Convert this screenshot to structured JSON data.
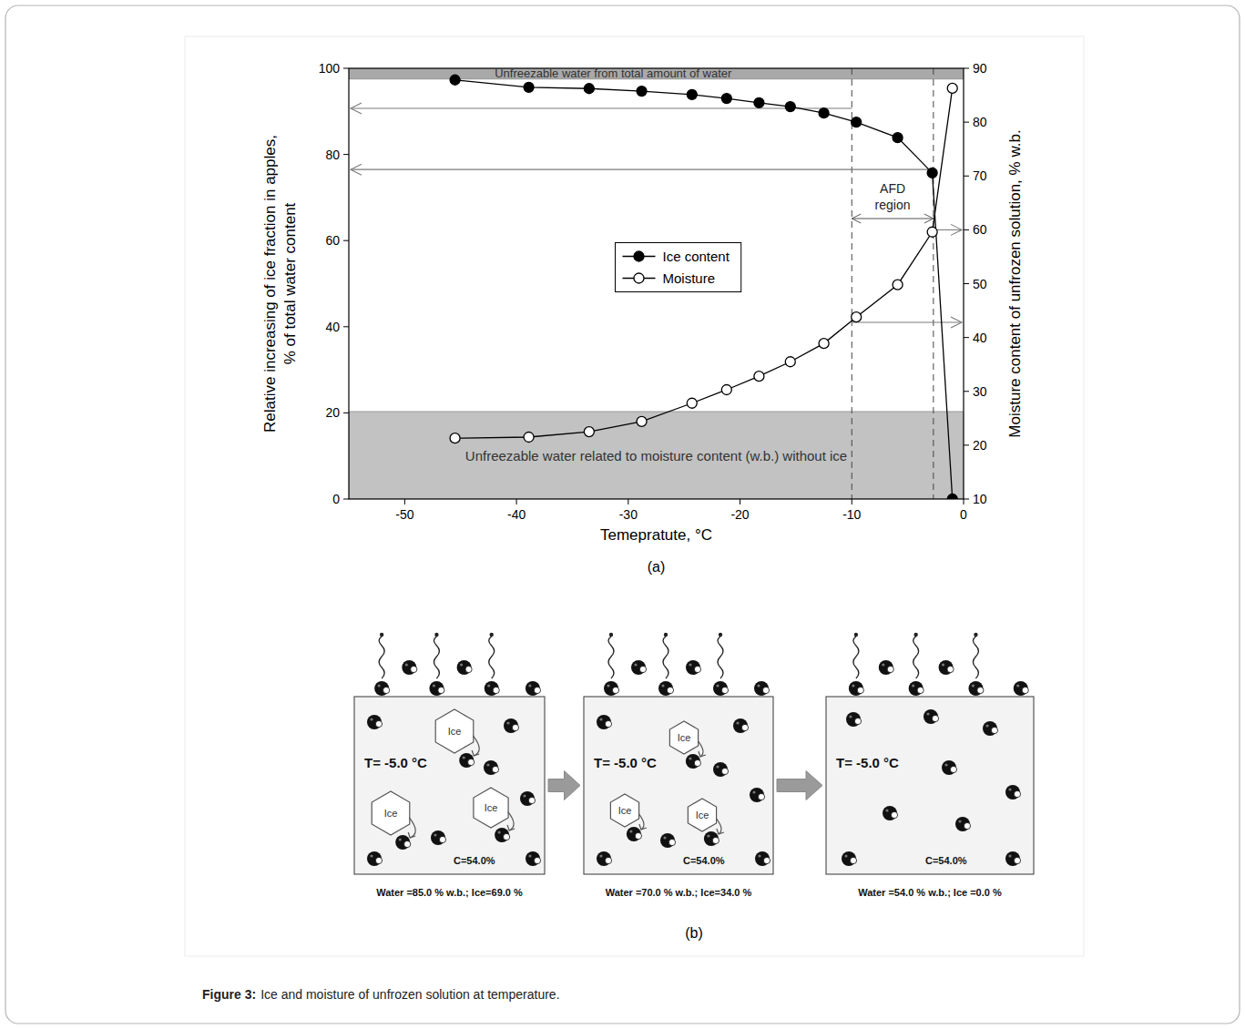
{
  "chart_data": {
    "type": "line",
    "x_label": "Temepratute, °C",
    "y_label": "Relative increasing of ice fraction in apples, % of total water content",
    "y2_label": "Moisture content of unfrozen solution, % w.b.",
    "x": [
      -45.5,
      -38.9,
      -33.5,
      -28.8,
      -24.3,
      -21.2,
      -18.3,
      -15.5,
      -12.5,
      -9.6,
      -5.9,
      -2.8,
      -1.0
    ],
    "series": [
      {
        "name": "Ice content",
        "color": "#000000",
        "marker": "filled-circle",
        "line_style": "solid",
        "values": [
          97.3,
          95.6,
          95.3,
          94.7,
          93.9,
          93.0,
          92.0,
          91.1,
          89.6,
          87.5,
          83.9,
          75.7,
          0
        ]
      },
      {
        "name": "Moisture",
        "color": "#000000",
        "marker": "open-circle",
        "line_style": "solid",
        "axis": "y2",
        "values": [
          21.3,
          21.5,
          22.5,
          24.4,
          27.8,
          30.3,
          32.8,
          35.5,
          38.9,
          43.8,
          49.8,
          59.6,
          86.3
        ]
      }
    ],
    "xlim": [
      -55,
      0
    ],
    "xticks": [
      -50,
      -40,
      -30,
      -20,
      -10,
      0
    ],
    "ylim": [
      0,
      100
    ],
    "yticks": [
      0,
      20,
      40,
      60,
      80,
      100
    ],
    "y2lim": [
      10,
      90
    ],
    "y2ticks": [
      10,
      20,
      30,
      40,
      50,
      60,
      70,
      80,
      90
    ],
    "grid": false,
    "legend": "center",
    "bands": [
      {
        "label": "Unfreezable water from total amount of water",
        "range": [
          97.5,
          100
        ],
        "color": "#a9a9a9"
      },
      {
        "label": "Unfreezable water related to moisture content (w.b.) without ice",
        "range": [
          0,
          20.3
        ],
        "color": "#c2c2c2"
      }
    ],
    "reference_lines": [
      {
        "x": -10,
        "y": 90.7,
        "y2": 42.8
      },
      {
        "x": -2.7,
        "y": 76.5,
        "y2": 60
      }
    ],
    "region_label": "AFD region"
  },
  "panel_labels": [
    "(a)",
    "(b)"
  ],
  "diagram": {
    "panels": [
      {
        "temperature": "T= -5.0 °C",
        "concentration": "C=54.0%",
        "ice_crystals": 3,
        "ice_label": "Ice",
        "summary": "Water =85.0 % w.b.; Ice=69.0 %"
      },
      {
        "temperature": "T= -5.0 °C",
        "concentration": "C=54.0%",
        "ice_crystals": 3,
        "ice_label": "Ice",
        "summary": "Water =70.0 % w.b.; Ice=34.0 %"
      },
      {
        "temperature": "T= -5.0 °C",
        "concentration": "C=54.0%",
        "ice_crystals": 0,
        "summary": "Water =54.0 % w.b.; Ice =0.0 %"
      }
    ]
  },
  "caption": {
    "label": "Figure 3:",
    "text": "Ice and moisture of unfrozen solution at temperature."
  }
}
